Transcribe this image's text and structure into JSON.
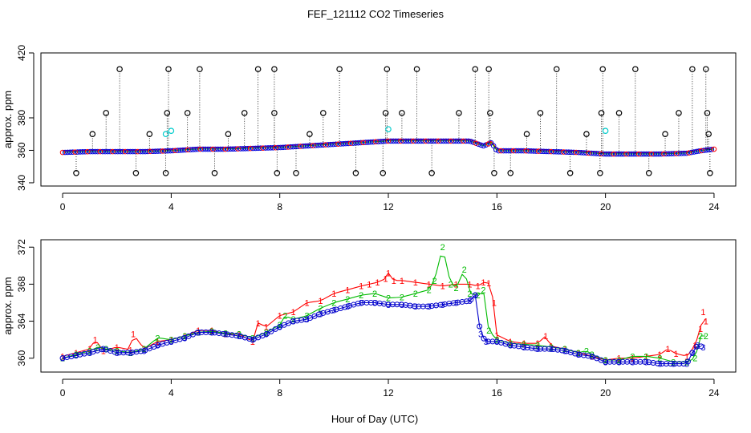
{
  "figure_title": "FEF_121112  CO2 Timeseries",
  "figure_xlabel": "Hour of Day (UTC)",
  "chart_data": [
    {
      "type": "scatter",
      "panel": "top",
      "title": "",
      "xlabel": "",
      "ylabel": "approx. ppm",
      "xlim": [
        -0.8,
        24.8
      ],
      "ylim": [
        338,
        420
      ],
      "xticks": [
        0,
        4,
        8,
        12,
        16,
        20,
        24
      ],
      "yticks": [
        340,
        360,
        380,
        420
      ],
      "baseline": [
        [
          0,
          359
        ],
        [
          1,
          359.5
        ],
        [
          2,
          359.5
        ],
        [
          3,
          359.5
        ],
        [
          4,
          360
        ],
        [
          5,
          361
        ],
        [
          6,
          361
        ],
        [
          7,
          361.5
        ],
        [
          8,
          362
        ],
        [
          9,
          363
        ],
        [
          10,
          364
        ],
        [
          11,
          365
        ],
        [
          12,
          366
        ],
        [
          13,
          366
        ],
        [
          14,
          366
        ],
        [
          15,
          366
        ],
        [
          15.5,
          363
        ],
        [
          15.8,
          365
        ],
        [
          16,
          360
        ],
        [
          17,
          360
        ],
        [
          18,
          359.5
        ],
        [
          19,
          359
        ],
        [
          20,
          358
        ],
        [
          21,
          358
        ],
        [
          22,
          358
        ],
        [
          23,
          358.5
        ],
        [
          23.5,
          360
        ],
        [
          24,
          361
        ]
      ],
      "spikes": [
        {
          "x": 0.5,
          "y": 346
        },
        {
          "x": 1.1,
          "y": 370
        },
        {
          "x": 1.6,
          "y": 383
        },
        {
          "x": 2.1,
          "y": 410
        },
        {
          "x": 2.7,
          "y": 346
        },
        {
          "x": 3.2,
          "y": 370
        },
        {
          "x": 3.8,
          "y": 346
        },
        {
          "x": 3.85,
          "y": 383
        },
        {
          "x": 3.9,
          "y": 410
        },
        {
          "x": 4.6,
          "y": 383
        },
        {
          "x": 5.05,
          "y": 410
        },
        {
          "x": 5.6,
          "y": 346
        },
        {
          "x": 6.1,
          "y": 370
        },
        {
          "x": 6.7,
          "y": 383
        },
        {
          "x": 7.2,
          "y": 410
        },
        {
          "x": 7.8,
          "y": 410
        },
        {
          "x": 7.8,
          "y": 383
        },
        {
          "x": 7.9,
          "y": 346
        },
        {
          "x": 8.6,
          "y": 346
        },
        {
          "x": 9.1,
          "y": 370
        },
        {
          "x": 9.6,
          "y": 383
        },
        {
          "x": 10.2,
          "y": 410
        },
        {
          "x": 10.8,
          "y": 346
        },
        {
          "x": 11.8,
          "y": 346
        },
        {
          "x": 11.9,
          "y": 383
        },
        {
          "x": 11.95,
          "y": 410
        },
        {
          "x": 12.5,
          "y": 383
        },
        {
          "x": 13.05,
          "y": 410
        },
        {
          "x": 13.6,
          "y": 346
        },
        {
          "x": 14.6,
          "y": 383
        },
        {
          "x": 15.2,
          "y": 410
        },
        {
          "x": 15.7,
          "y": 410
        },
        {
          "x": 15.75,
          "y": 383
        },
        {
          "x": 15.9,
          "y": 346
        },
        {
          "x": 16.5,
          "y": 346
        },
        {
          "x": 17.1,
          "y": 370
        },
        {
          "x": 17.6,
          "y": 383
        },
        {
          "x": 18.2,
          "y": 410
        },
        {
          "x": 18.7,
          "y": 346
        },
        {
          "x": 19.3,
          "y": 370
        },
        {
          "x": 19.8,
          "y": 346
        },
        {
          "x": 19.85,
          "y": 383
        },
        {
          "x": 19.9,
          "y": 410
        },
        {
          "x": 20.5,
          "y": 383
        },
        {
          "x": 21.1,
          "y": 410
        },
        {
          "x": 21.6,
          "y": 346
        },
        {
          "x": 22.2,
          "y": 370
        },
        {
          "x": 22.7,
          "y": 383
        },
        {
          "x": 23.2,
          "y": 410
        },
        {
          "x": 23.7,
          "y": 410
        },
        {
          "x": 23.75,
          "y": 383
        },
        {
          "x": 23.8,
          "y": 370
        },
        {
          "x": 23.85,
          "y": 346
        }
      ],
      "cyan_points": [
        {
          "x": 3.8,
          "y": 370
        },
        {
          "x": 4.0,
          "y": 372
        },
        {
          "x": 12.0,
          "y": 373
        },
        {
          "x": 20.0,
          "y": 372
        }
      ]
    },
    {
      "type": "line",
      "panel": "bottom",
      "title": "",
      "xlabel": "Hour of Day (UTC)",
      "ylabel": "approx. ppm",
      "xlim": [
        -0.8,
        24.8
      ],
      "ylim": [
        358.5,
        372.8
      ],
      "xticks": [
        0,
        4,
        8,
        12,
        16,
        20,
        24
      ],
      "yticks": [
        360,
        364,
        368,
        372
      ],
      "series": [
        {
          "name": "1",
          "label": "1",
          "color": "#ff0000",
          "x": [
            0,
            0.5,
            1,
            1.2,
            1.5,
            2,
            2.5,
            2.6,
            3,
            3.5,
            4,
            4.5,
            5,
            5.5,
            6,
            6.5,
            7,
            7.2,
            7.5,
            8,
            8.5,
            9,
            9.5,
            10,
            10.5,
            11,
            11.3,
            11.6,
            11.9,
            12,
            12.2,
            12.5,
            13,
            13.5,
            14,
            14.5,
            15,
            15.3,
            15.5,
            15.7,
            15.9,
            16,
            16.5,
            17,
            17.5,
            17.8,
            18,
            18.5,
            19,
            19.5,
            20,
            20.5,
            21,
            21.5,
            22,
            22.3,
            22.6,
            23,
            23.3,
            23.5,
            23.6,
            23.7
          ],
          "y": [
            360.2,
            360.6,
            361,
            362,
            360.8,
            361.2,
            360.9,
            362.6,
            361,
            361.8,
            362,
            362.4,
            363,
            363,
            362.6,
            362.6,
            361.8,
            363.8,
            363.4,
            364.6,
            365,
            366,
            366.2,
            367,
            367.4,
            367.8,
            368,
            368.2,
            368.6,
            369.2,
            368.4,
            368.4,
            368.2,
            368,
            367.8,
            368,
            368,
            367.8,
            368.2,
            368.1,
            366,
            362.5,
            361.8,
            361.6,
            361.6,
            362.4,
            361.3,
            361,
            360.6,
            360.2,
            359.8,
            360,
            360,
            360.2,
            360.4,
            361,
            360.5,
            360.2,
            361.4,
            363.2,
            365,
            364
          ]
        },
        {
          "name": "2",
          "label": "2",
          "color": "#00bb00",
          "x": [
            0,
            0.5,
            1,
            1.3,
            1.6,
            2,
            2.5,
            3,
            3.5,
            4,
            4.5,
            5,
            5.5,
            6,
            6.5,
            7,
            7.5,
            8,
            8.2,
            8.5,
            9,
            9.5,
            10,
            10.5,
            11,
            11.5,
            12,
            12.5,
            13,
            13.5,
            13.7,
            14,
            14.3,
            14.5,
            14.8,
            15,
            15.3,
            15.5,
            15.7,
            16,
            16.5,
            17,
            17.5,
            18,
            18.5,
            19,
            19.3,
            19.5,
            20,
            20.5,
            21,
            21.5,
            22,
            22.5,
            23,
            23.3,
            23.5,
            23.7
          ],
          "y": [
            360,
            360.4,
            360.8,
            361.2,
            361,
            360.8,
            360.6,
            361,
            362.2,
            362,
            362.4,
            362.8,
            362.9,
            362.7,
            362.6,
            362.2,
            362.8,
            363.6,
            364.6,
            364.2,
            364.6,
            365.4,
            366,
            366.4,
            366.8,
            367,
            366.5,
            366.6,
            367,
            367.4,
            368.4,
            372,
            368,
            367.6,
            369.6,
            367,
            366.8,
            367.4,
            363,
            362,
            361.6,
            361.5,
            361.4,
            361.2,
            361,
            360.6,
            360.8,
            360.4,
            359.8,
            359.8,
            360.2,
            360.2,
            360,
            359.6,
            359.6,
            360,
            362.4,
            362.4
          ]
        },
        {
          "name": "3",
          "label": "3",
          "color": "#0000cc",
          "x": [
            0,
            0.5,
            1,
            1.5,
            2,
            2.5,
            3,
            3.5,
            4,
            4.5,
            5,
            5.5,
            6,
            6.5,
            7,
            7.5,
            8,
            8.5,
            9,
            9.5,
            10,
            10.5,
            11,
            11.5,
            12,
            12.5,
            13,
            13.5,
            14,
            14.5,
            15,
            15.2,
            15.4,
            15.6,
            16,
            16.5,
            17,
            17.5,
            18,
            18.5,
            19,
            19.5,
            20,
            20.5,
            21,
            21.5,
            22,
            22.5,
            23,
            23.2,
            23.4,
            23.6
          ],
          "y": [
            360,
            360.3,
            360.6,
            361,
            360.6,
            360.6,
            360.8,
            361.4,
            361.8,
            362.2,
            362.8,
            362.8,
            362.6,
            362.4,
            362,
            362.6,
            363.4,
            364,
            364.2,
            364.8,
            365.2,
            365.6,
            366,
            366,
            365.8,
            365.8,
            365.6,
            365.6,
            365.8,
            366,
            366.2,
            366.8,
            362.6,
            361.8,
            361.8,
            361.4,
            361.2,
            361,
            361,
            360.8,
            360.4,
            360.2,
            359.6,
            359.6,
            359.6,
            359.6,
            359.4,
            359.4,
            359.4,
            360.6,
            361.4,
            361.2
          ]
        }
      ]
    }
  ]
}
